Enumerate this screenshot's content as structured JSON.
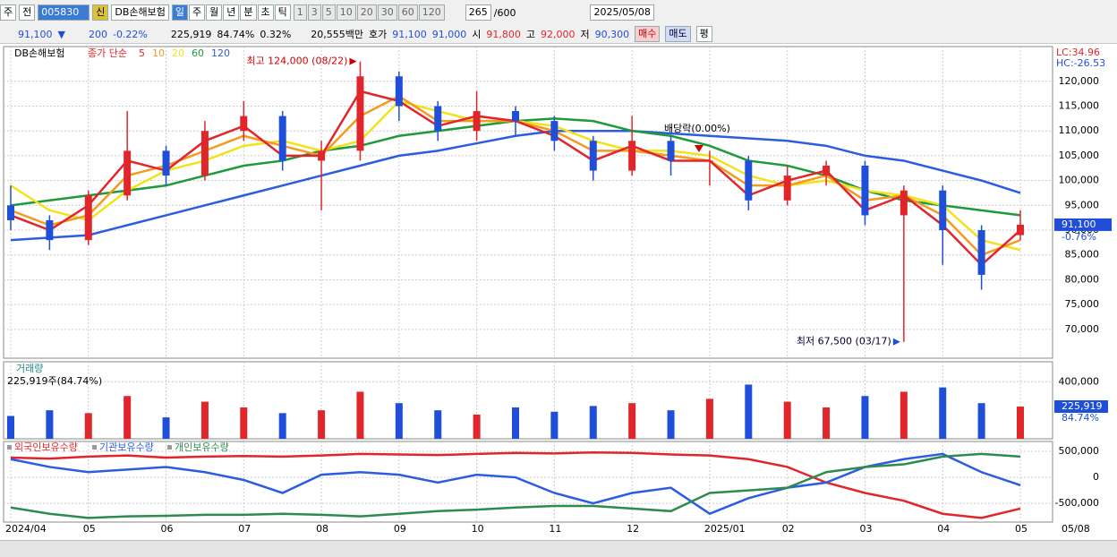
{
  "toolbar": {
    "period_code": "주",
    "prev": "전",
    "code": "005830",
    "name": "DB손해보험",
    "new_tag": "신",
    "periods": [
      "일",
      "주",
      "월",
      "년",
      "분",
      "초",
      "틱"
    ],
    "intervals": [
      "1",
      "3",
      "5",
      "10",
      "20",
      "30",
      "60",
      "120"
    ],
    "count": "265",
    "count_max": "/600",
    "date": "2025/05/08"
  },
  "quote": {
    "price": "91,100",
    "arrow": "▼",
    "change": "200",
    "change_pct": "-0.22%",
    "volume": "225,919",
    "volume_ratio": "84.74%",
    "turnover": "0.32%",
    "amount": "20,555백만",
    "bid_label": "호가",
    "ask": "91,100",
    "bid": "91,000",
    "open_label": "시",
    "open": "91,800",
    "high_label": "고",
    "high": "92,000",
    "low_label": "저",
    "low": "90,300",
    "buy": "매수",
    "sell": "매도",
    "avg": "평"
  },
  "x_axis_end": "05/08",
  "chart_data": [
    {
      "type": "candlestick",
      "title": "DB손해보험",
      "ma_label": "종가 단순",
      "lc": "LC:34.96",
      "hc": "HC:-26.53",
      "categories": [
        "2024/04",
        null,
        "05",
        null,
        "06",
        null,
        "07",
        null,
        "08",
        null,
        "09",
        null,
        "10",
        null,
        "11",
        null,
        "12",
        null,
        "2025/01",
        null,
        "02",
        null,
        "03",
        null,
        "04",
        null,
        "05"
      ],
      "open": [
        95000,
        92000,
        88000,
        97000,
        106000,
        101000,
        110000,
        113000,
        104000,
        106000,
        121000,
        115000,
        110000,
        114000,
        112000,
        108000,
        102000,
        108000,
        104000,
        104000,
        96000,
        101000,
        103000,
        93000,
        98000,
        90000,
        89000
      ],
      "high": [
        99000,
        93000,
        98000,
        114000,
        107000,
        112000,
        116000,
        114000,
        108000,
        124000,
        122000,
        116000,
        118000,
        115000,
        113000,
        109000,
        113000,
        109000,
        106000,
        105000,
        103000,
        104000,
        104000,
        99000,
        99000,
        91000,
        94000
      ],
      "low": [
        90000,
        86000,
        87000,
        96000,
        99000,
        100000,
        108000,
        102000,
        94000,
        104000,
        112000,
        108000,
        108000,
        109000,
        106000,
        100000,
        101000,
        101000,
        99000,
        94000,
        95000,
        99000,
        91000,
        67500,
        83000,
        78000,
        88000
      ],
      "close": [
        92000,
        88000,
        97000,
        106000,
        101000,
        110000,
        113000,
        104000,
        106000,
        121000,
        115000,
        110000,
        114000,
        112000,
        108000,
        102000,
        108000,
        104000,
        104000,
        96000,
        101000,
        103000,
        93000,
        98000,
        90000,
        81000,
        91100
      ],
      "up_color": "#e0262b",
      "down_color": "#1f4fd8",
      "series": [
        {
          "name": "5",
          "color": "#e0262b",
          "values": [
            93000,
            90000,
            95000,
            104000,
            102000,
            108000,
            111000,
            105000,
            105000,
            118000,
            116000,
            111000,
            113000,
            112000,
            109000,
            104000,
            107000,
            104000,
            104000,
            97000,
            100000,
            102000,
            94000,
            97000,
            91000,
            83000,
            90000
          ]
        },
        {
          "name": "10",
          "color": "#f39a1f",
          "values": [
            94000,
            91000,
            93000,
            101000,
            103000,
            106000,
            109000,
            107000,
            105000,
            113000,
            117000,
            112000,
            112000,
            112000,
            110000,
            106000,
            106000,
            105000,
            104000,
            99000,
            99000,
            101000,
            96000,
            97000,
            93000,
            85000,
            88000
          ]
        },
        {
          "name": "20",
          "color": "#f2e21a",
          "values": [
            99000,
            94000,
            92000,
            98000,
            102000,
            104000,
            107000,
            108000,
            106000,
            108000,
            116000,
            114000,
            112000,
            112000,
            111000,
            108000,
            106000,
            106000,
            105000,
            101000,
            99000,
            100000,
            98000,
            97000,
            95000,
            88000,
            86000
          ]
        },
        {
          "name": "60",
          "color": "#1e9a3c",
          "values": [
            95000,
            96000,
            97000,
            98000,
            99000,
            101000,
            103000,
            104000,
            106000,
            107000,
            109000,
            110000,
            111000,
            112000,
            112500,
            112000,
            110000,
            109000,
            107000,
            104000,
            103000,
            101000,
            98000,
            96000,
            95000,
            94000,
            93000
          ]
        },
        {
          "name": "120",
          "color": "#2c5ce0",
          "values": [
            88000,
            88500,
            89000,
            91000,
            93000,
            95000,
            97000,
            99000,
            101000,
            103000,
            105000,
            106000,
            107500,
            109000,
            110000,
            110000,
            110000,
            109500,
            109000,
            108500,
            108000,
            107000,
            105000,
            104000,
            102000,
            100000,
            97500
          ]
        }
      ],
      "annotations": [
        {
          "label": "최고 124,000 (08/22)",
          "value": 124000
        },
        {
          "label": "최저 67,500 (03/17)",
          "value": 67500
        },
        {
          "label": "배당락(0.00%)"
        }
      ],
      "last": {
        "value": 91100,
        "label": "91,100"
      },
      "last_pct": "-0.76%",
      "ylim": [
        64200,
        127000
      ],
      "yticks": [
        {
          "value": 70000,
          "label": "70,000"
        },
        {
          "value": 75000,
          "label": "75,000"
        },
        {
          "value": 80000,
          "label": "80,000"
        },
        {
          "value": 85000,
          "label": "85,000"
        },
        {
          "value": 90000,
          "label": "90,000"
        },
        {
          "value": 95000,
          "label": "95,000"
        },
        {
          "value": 100000,
          "label": "100,000"
        },
        {
          "value": 105000,
          "label": "105,000"
        },
        {
          "value": 110000,
          "label": "110,000"
        },
        {
          "value": 115000,
          "label": "115,000"
        },
        {
          "value": 120000,
          "label": "120,000"
        }
      ]
    },
    {
      "type": "bar",
      "title": "거래량",
      "subtitle": "225,919주(84.74%)",
      "values": [
        160000,
        200000,
        180000,
        300000,
        150000,
        260000,
        220000,
        180000,
        200000,
        330000,
        250000,
        200000,
        170000,
        220000,
        190000,
        230000,
        250000,
        200000,
        280000,
        380000,
        260000,
        220000,
        300000,
        330000,
        360000,
        250000,
        225919
      ],
      "last": {
        "value": 225919,
        "label": "225,919"
      },
      "last_pct": "84.74%",
      "ylim": [
        0,
        540000
      ],
      "yticks": [
        {
          "value": 400000,
          "label": "400,000"
        }
      ]
    },
    {
      "type": "line",
      "series": [
        {
          "name": "외국인보유수량",
          "color": "#e0262b",
          "values": [
            380000,
            360000,
            400000,
            420000,
            380000,
            400000,
            410000,
            400000,
            420000,
            450000,
            440000,
            430000,
            450000,
            470000,
            460000,
            480000,
            470000,
            440000,
            420000,
            350000,
            200000,
            -100000,
            -300000,
            -450000,
            -700000,
            -780000,
            -600000
          ]
        },
        {
          "name": "기관보유수량",
          "color": "#2c5ce0",
          "values": [
            350000,
            200000,
            100000,
            150000,
            200000,
            100000,
            -50000,
            -300000,
            50000,
            100000,
            50000,
            -100000,
            50000,
            0,
            -300000,
            -500000,
            -300000,
            -200000,
            -700000,
            -400000,
            -200000,
            -100000,
            200000,
            350000,
            450000,
            100000,
            -150000
          ]
        },
        {
          "name": "개인보유수량",
          "color": "#2e8b4e",
          "values": [
            -580000,
            -700000,
            -780000,
            -750000,
            -740000,
            -720000,
            -720000,
            -700000,
            -720000,
            -750000,
            -700000,
            -650000,
            -620000,
            -580000,
            -550000,
            -550000,
            -600000,
            -650000,
            -300000,
            -250000,
            -200000,
            100000,
            200000,
            250000,
            400000,
            450000,
            400000
          ]
        }
      ],
      "ylim": [
        -860000,
        690000
      ],
      "yticks": [
        {
          "value": 500000,
          "label": "500,000"
        },
        0,
        {
          "value": -500000,
          "label": "-500,000"
        }
      ]
    }
  ]
}
